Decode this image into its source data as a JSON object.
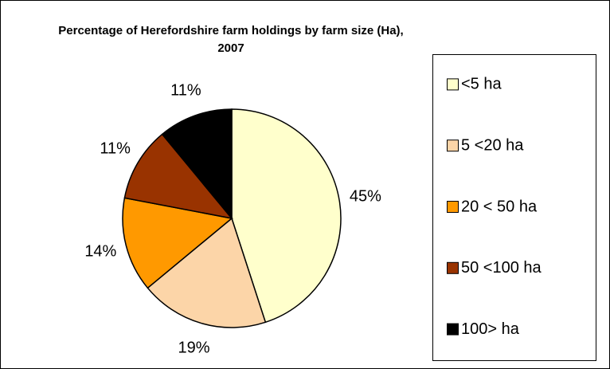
{
  "chart_data": {
    "type": "pie",
    "title": "Percentage of Herefordshire farm holdings by farm size (Ha), 2007",
    "categories": [
      "<5 ha",
      "5 <20 ha",
      "20 < 50 ha",
      "50 <100 ha",
      "100> ha"
    ],
    "values": [
      45,
      19,
      14,
      11,
      11
    ],
    "value_labels": [
      "45%",
      "19%",
      "14%",
      "11%",
      "11%"
    ],
    "colors": [
      "#ffffcc",
      "#fcd5a8",
      "#ff9900",
      "#993300",
      "#000000"
    ],
    "legend": "right"
  }
}
